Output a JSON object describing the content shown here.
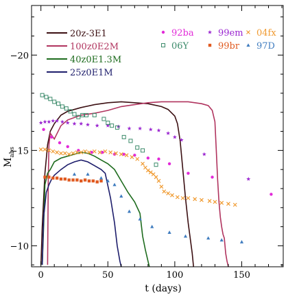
{
  "chart_data": {
    "type": "line",
    "xlabel": "t (days)",
    "ylabel": "M",
    "ylabel_sub": "abs",
    "xlim": [
      -7,
      181
    ],
    "ylim": [
      -8.9,
      -22.6
    ],
    "y_inverted": true,
    "x_ticks": [
      0,
      50,
      100,
      150
    ],
    "x_tick_labels": [
      "0",
      "50",
      "100",
      "150"
    ],
    "y_ticks": [
      -10,
      -15,
      -20
    ],
    "y_tick_labels": [
      "−10",
      "−15",
      "−20"
    ],
    "model_series": [
      {
        "name": "20z-3E1",
        "color": "#3b0f12",
        "points": [
          [
            0,
            -9
          ],
          [
            1,
            -11
          ],
          [
            3,
            -13.8
          ],
          [
            5,
            -15.3
          ],
          [
            7,
            -16
          ],
          [
            10,
            -16.4
          ],
          [
            15,
            -16.85
          ],
          [
            20,
            -17.05
          ],
          [
            30,
            -17.25
          ],
          [
            40,
            -17.4
          ],
          [
            50,
            -17.5
          ],
          [
            60,
            -17.55
          ],
          [
            70,
            -17.5
          ],
          [
            80,
            -17.45
          ],
          [
            90,
            -17.3
          ],
          [
            95,
            -17.15
          ],
          [
            100,
            -16.8
          ],
          [
            102,
            -16.4
          ],
          [
            104,
            -15.5
          ],
          [
            106,
            -14
          ],
          [
            108,
            -12.5
          ],
          [
            110,
            -11.2
          ],
          [
            113,
            -9.6
          ],
          [
            114,
            -8.9
          ]
        ]
      },
      {
        "name": "100z0E2M",
        "color": "#b0335e",
        "points": [
          [
            5,
            -9
          ],
          [
            5.5,
            -13.5
          ],
          [
            6,
            -15.3
          ],
          [
            7,
            -15.9
          ],
          [
            10,
            -15.6
          ],
          [
            15,
            -16.3
          ],
          [
            20,
            -16.6
          ],
          [
            30,
            -16.85
          ],
          [
            40,
            -16.95
          ],
          [
            50,
            -17.1
          ],
          [
            60,
            -17.3
          ],
          [
            70,
            -17.4
          ],
          [
            80,
            -17.5
          ],
          [
            90,
            -17.55
          ],
          [
            100,
            -17.55
          ],
          [
            110,
            -17.55
          ],
          [
            120,
            -17.45
          ],
          [
            125,
            -17.35
          ],
          [
            128,
            -17.1
          ],
          [
            130,
            -16.5
          ],
          [
            131,
            -15
          ],
          [
            132,
            -13.5
          ],
          [
            133,
            -12.3
          ],
          [
            134,
            -11.5
          ],
          [
            135,
            -11
          ],
          [
            136,
            -10.6
          ],
          [
            137,
            -10.4
          ],
          [
            138,
            -9.6
          ],
          [
            139,
            -9.2
          ],
          [
            140,
            -8.9
          ]
        ]
      },
      {
        "name": "40z0E1.3M",
        "color": "#1d6b1d",
        "points": [
          [
            1,
            -9
          ],
          [
            2,
            -11
          ],
          [
            3,
            -13.2
          ],
          [
            5,
            -13.8
          ],
          [
            7,
            -14
          ],
          [
            10,
            -14.4
          ],
          [
            15,
            -14.6
          ],
          [
            20,
            -14.7
          ],
          [
            25,
            -14.8
          ],
          [
            30,
            -14.9
          ],
          [
            35,
            -14.85
          ],
          [
            40,
            -14.7
          ],
          [
            45,
            -14.5
          ],
          [
            50,
            -14.3
          ],
          [
            55,
            -14
          ],
          [
            60,
            -13.4
          ],
          [
            65,
            -12.8
          ],
          [
            70,
            -12.3
          ],
          [
            74,
            -11.7
          ],
          [
            76,
            -10.5
          ],
          [
            78,
            -9.8
          ],
          [
            80,
            -9.2
          ],
          [
            81,
            -8.9
          ]
        ]
      },
      {
        "name": "25z0E1M",
        "color": "#1d1d6b",
        "points": [
          [
            1,
            -9
          ],
          [
            2,
            -11.5
          ],
          [
            4,
            -12.8
          ],
          [
            6,
            -13.2
          ],
          [
            8,
            -13.5
          ],
          [
            10,
            -13.7
          ],
          [
            15,
            -14
          ],
          [
            20,
            -14.25
          ],
          [
            25,
            -14.4
          ],
          [
            30,
            -14.5
          ],
          [
            35,
            -14.4
          ],
          [
            40,
            -14.2
          ],
          [
            45,
            -14
          ],
          [
            48,
            -13.8
          ],
          [
            52,
            -12.5
          ],
          [
            55,
            -11.2
          ],
          [
            57,
            -10
          ],
          [
            59,
            -9.2
          ],
          [
            60,
            -8.9
          ]
        ]
      }
    ],
    "observed_series": [
      {
        "name": "92ba",
        "marker": "circle",
        "color": "#e22ad8",
        "points": [
          [
            2,
            -16.1
          ],
          [
            8,
            -15.7
          ],
          [
            14,
            -15.4
          ],
          [
            20,
            -15.2
          ],
          [
            28,
            -15
          ],
          [
            38,
            -14.9
          ],
          [
            46,
            -14.9
          ],
          [
            55,
            -14.8
          ],
          [
            62,
            -14.8
          ],
          [
            70,
            -14.75
          ],
          [
            80,
            -14.6
          ],
          [
            88,
            -14.55
          ],
          [
            96,
            -14.3
          ],
          [
            110,
            -13.8
          ],
          [
            128,
            -13.6
          ],
          [
            172,
            -12.7
          ]
        ]
      },
      {
        "name": "99em",
        "marker": "star",
        "color": "#9a25d0",
        "points": [
          [
            0,
            -16.45
          ],
          [
            3,
            -16.5
          ],
          [
            6,
            -16.5
          ],
          [
            9,
            -16.55
          ],
          [
            12,
            -16.55
          ],
          [
            16,
            -16.5
          ],
          [
            20,
            -16.45
          ],
          [
            25,
            -16.4
          ],
          [
            30,
            -16.4
          ],
          [
            35,
            -16.35
          ],
          [
            42,
            -16.3
          ],
          [
            50,
            -16.3
          ],
          [
            58,
            -16.25
          ],
          [
            66,
            -16.15
          ],
          [
            74,
            -16.15
          ],
          [
            82,
            -16.1
          ],
          [
            88,
            -16.05
          ],
          [
            95,
            -15.9
          ],
          [
            100,
            -15.7
          ],
          [
            105,
            -15.55
          ],
          [
            122,
            -14.8
          ],
          [
            155,
            -13.5
          ]
        ]
      },
      {
        "name": "04fx",
        "marker": "cross",
        "color": "#f09a30",
        "points": [
          [
            0,
            -15.05
          ],
          [
            3,
            -15.05
          ],
          [
            6,
            -15
          ],
          [
            9,
            -14.95
          ],
          [
            12,
            -14.9
          ],
          [
            15,
            -14.85
          ],
          [
            18,
            -14.85
          ],
          [
            21,
            -14.8
          ],
          [
            24,
            -14.85
          ],
          [
            27,
            -14.9
          ],
          [
            30,
            -14.9
          ],
          [
            33,
            -14.95
          ],
          [
            36,
            -14.9
          ],
          [
            40,
            -14.95
          ],
          [
            44,
            -14.9
          ],
          [
            48,
            -14.95
          ],
          [
            52,
            -14.9
          ],
          [
            56,
            -14.85
          ],
          [
            60,
            -14.8
          ],
          [
            64,
            -14.75
          ],
          [
            68,
            -14.65
          ],
          [
            72,
            -14.55
          ],
          [
            76,
            -14.3
          ],
          [
            78,
            -14.1
          ],
          [
            80,
            -13.95
          ],
          [
            82,
            -13.85
          ],
          [
            84,
            -13.75
          ],
          [
            86,
            -13.6
          ],
          [
            88,
            -13.4
          ],
          [
            90,
            -13.1
          ],
          [
            92,
            -12.85
          ],
          [
            95,
            -12.75
          ],
          [
            98,
            -12.65
          ],
          [
            102,
            -12.55
          ],
          [
            106,
            -12.5
          ],
          [
            110,
            -12.5
          ],
          [
            115,
            -12.45
          ],
          [
            120,
            -12.4
          ],
          [
            126,
            -12.35
          ],
          [
            130,
            -12.3
          ],
          [
            135,
            -12.25
          ],
          [
            140,
            -12.2
          ],
          [
            145,
            -12.15
          ]
        ]
      },
      {
        "name": "06Y",
        "marker": "square",
        "color": "#3b8a6a",
        "points": [
          [
            1,
            -17.9
          ],
          [
            4,
            -17.8
          ],
          [
            7,
            -17.7
          ],
          [
            10,
            -17.55
          ],
          [
            13,
            -17.45
          ],
          [
            16,
            -17.3
          ],
          [
            19,
            -17.2
          ],
          [
            22,
            -17.05
          ],
          [
            25,
            -16.9
          ],
          [
            28,
            -16.75
          ],
          [
            31,
            -16.85
          ],
          [
            34,
            -16.85
          ],
          [
            40,
            -16.85
          ],
          [
            47,
            -16.65
          ],
          [
            50,
            -16.45
          ],
          [
            53,
            -16.3
          ],
          [
            57,
            -16.2
          ],
          [
            62,
            -15.7
          ],
          [
            67,
            -15.5
          ],
          [
            72,
            -15.15
          ],
          [
            76,
            -15
          ],
          [
            86,
            -14.25
          ]
        ]
      },
      {
        "name": "99br",
        "marker": "filled-square",
        "color": "#e05a20",
        "points": [
          [
            3,
            -13.6
          ],
          [
            6,
            -13.6
          ],
          [
            9,
            -13.55
          ],
          [
            12,
            -13.55
          ],
          [
            15,
            -13.5
          ],
          [
            18,
            -13.5
          ],
          [
            21,
            -13.45
          ],
          [
            24,
            -13.45
          ],
          [
            27,
            -13.45
          ],
          [
            30,
            -13.4
          ],
          [
            33,
            -13.45
          ],
          [
            36,
            -13.4
          ],
          [
            39,
            -13.4
          ],
          [
            42,
            -13.35
          ],
          [
            45,
            -13.4
          ]
        ]
      },
      {
        "name": "97D",
        "marker": "triangle",
        "color": "#3f7cbf",
        "points": [
          [
            25,
            -13.75
          ],
          [
            35,
            -13.75
          ],
          [
            45,
            -13.55
          ],
          [
            50,
            -13.4
          ],
          [
            55,
            -13.2
          ],
          [
            60,
            -12.6
          ],
          [
            66,
            -11.8
          ],
          [
            74,
            -11.4
          ],
          [
            83,
            -11
          ],
          [
            96,
            -10.7
          ],
          [
            108,
            -10.5
          ],
          [
            125,
            -10.4
          ],
          [
            135,
            -10.3
          ],
          [
            150,
            -10.2
          ]
        ]
      }
    ]
  }
}
